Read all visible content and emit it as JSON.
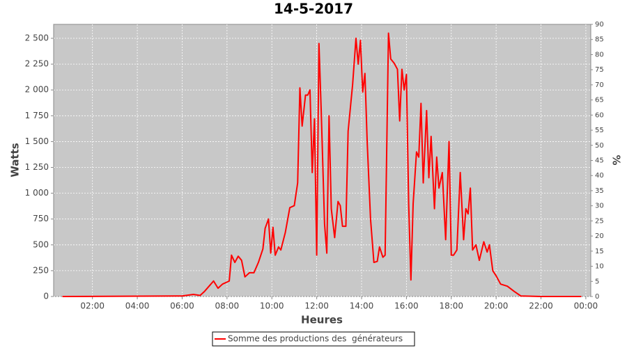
{
  "chart_data": {
    "type": "line",
    "title": "14-5-2017",
    "x_label": "Heures",
    "y_label": "Watts",
    "y2_label": "%",
    "xlim": [
      0.27,
      24.22
    ],
    "xticks": [
      {
        "value": 2,
        "label": "02:00"
      },
      {
        "value": 4,
        "label": "04:00"
      },
      {
        "value": 6,
        "label": "06:00"
      },
      {
        "value": 8,
        "label": "08:00"
      },
      {
        "value": 10,
        "label": "10:00"
      },
      {
        "value": 12,
        "label": "12:00"
      },
      {
        "value": 14,
        "label": "14:00"
      },
      {
        "value": 16,
        "label": "16:00"
      },
      {
        "value": 18,
        "label": "18:00"
      },
      {
        "value": 20,
        "label": "20:00"
      },
      {
        "value": 22,
        "label": "22:00"
      },
      {
        "value": 24,
        "label": "00:00"
      }
    ],
    "ylim": [
      0,
      2635
    ],
    "yticks": [
      0,
      250,
      500,
      750,
      {
        "value": 1000,
        "label": "1 000"
      },
      {
        "value": 1250,
        "label": "1 250"
      },
      {
        "value": 1500,
        "label": "1 500"
      },
      {
        "value": 1750,
        "label": "1 750"
      },
      {
        "value": 2000,
        "label": "2 000"
      },
      {
        "value": 2250,
        "label": "2 250"
      },
      {
        "value": 2500,
        "label": "2 500"
      }
    ],
    "y2lim": [
      0,
      90
    ],
    "y2ticks": [
      0,
      5,
      10,
      15,
      20,
      25,
      30,
      35,
      40,
      45,
      50,
      55,
      60,
      65,
      70,
      75,
      80,
      85,
      90
    ],
    "grid": true,
    "legend": "bottom",
    "series": [
      {
        "name": "Somme des productions des  générateurs",
        "color": "#ff0000",
        "x": [
          0.66,
          6.0,
          6.5,
          6.8,
          7.0,
          7.2,
          7.4,
          7.6,
          7.8,
          8.0,
          8.1,
          8.2,
          8.35,
          8.5,
          8.65,
          8.8,
          9.0,
          9.2,
          9.4,
          9.6,
          9.7,
          9.85,
          9.95,
          10.05,
          10.15,
          10.3,
          10.4,
          10.6,
          10.8,
          11.0,
          11.15,
          11.25,
          11.35,
          11.5,
          11.6,
          11.7,
          11.8,
          11.9,
          12.0,
          12.1,
          12.2,
          12.35,
          12.45,
          12.55,
          12.65,
          12.8,
          12.95,
          13.05,
          13.15,
          13.3,
          13.4,
          13.6,
          13.75,
          13.85,
          13.95,
          14.05,
          14.15,
          14.25,
          14.4,
          14.55,
          14.7,
          14.8,
          14.95,
          15.05,
          15.2,
          15.3,
          15.45,
          15.6,
          15.7,
          15.8,
          15.9,
          16.0,
          16.1,
          16.2,
          16.3,
          16.45,
          16.55,
          16.65,
          16.75,
          16.9,
          17.0,
          17.1,
          17.25,
          17.35,
          17.45,
          17.6,
          17.75,
          17.9,
          18.0,
          18.1,
          18.25,
          18.4,
          18.55,
          18.65,
          18.75,
          18.85,
          18.95,
          19.1,
          19.25,
          19.45,
          19.6,
          19.7,
          19.85,
          20.0,
          20.2,
          20.5,
          20.8,
          21.1,
          22.0,
          23.8
        ],
        "values": [
          0,
          5,
          20,
          10,
          50,
          100,
          150,
          80,
          120,
          140,
          150,
          400,
          330,
          390,
          350,
          190,
          230,
          230,
          330,
          460,
          660,
          750,
          420,
          670,
          400,
          480,
          450,
          620,
          860,
          880,
          1100,
          2020,
          1650,
          1950,
          1950,
          2000,
          1200,
          1720,
          400,
          2450,
          1800,
          700,
          420,
          1750,
          850,
          570,
          920,
          880,
          680,
          680,
          1600,
          2050,
          2500,
          2250,
          2480,
          1980,
          2160,
          1500,
          750,
          330,
          340,
          480,
          380,
          400,
          2550,
          2300,
          2260,
          2200,
          1700,
          2200,
          2000,
          2150,
          900,
          160,
          900,
          1400,
          1350,
          1870,
          1100,
          1800,
          1150,
          1550,
          850,
          1350,
          1050,
          1200,
          550,
          1500,
          400,
          400,
          450,
          1200,
          550,
          850,
          800,
          1050,
          450,
          500,
          350,
          530,
          430,
          500,
          250,
          200,
          120,
          100,
          50,
          5,
          0,
          0
        ]
      }
    ]
  }
}
